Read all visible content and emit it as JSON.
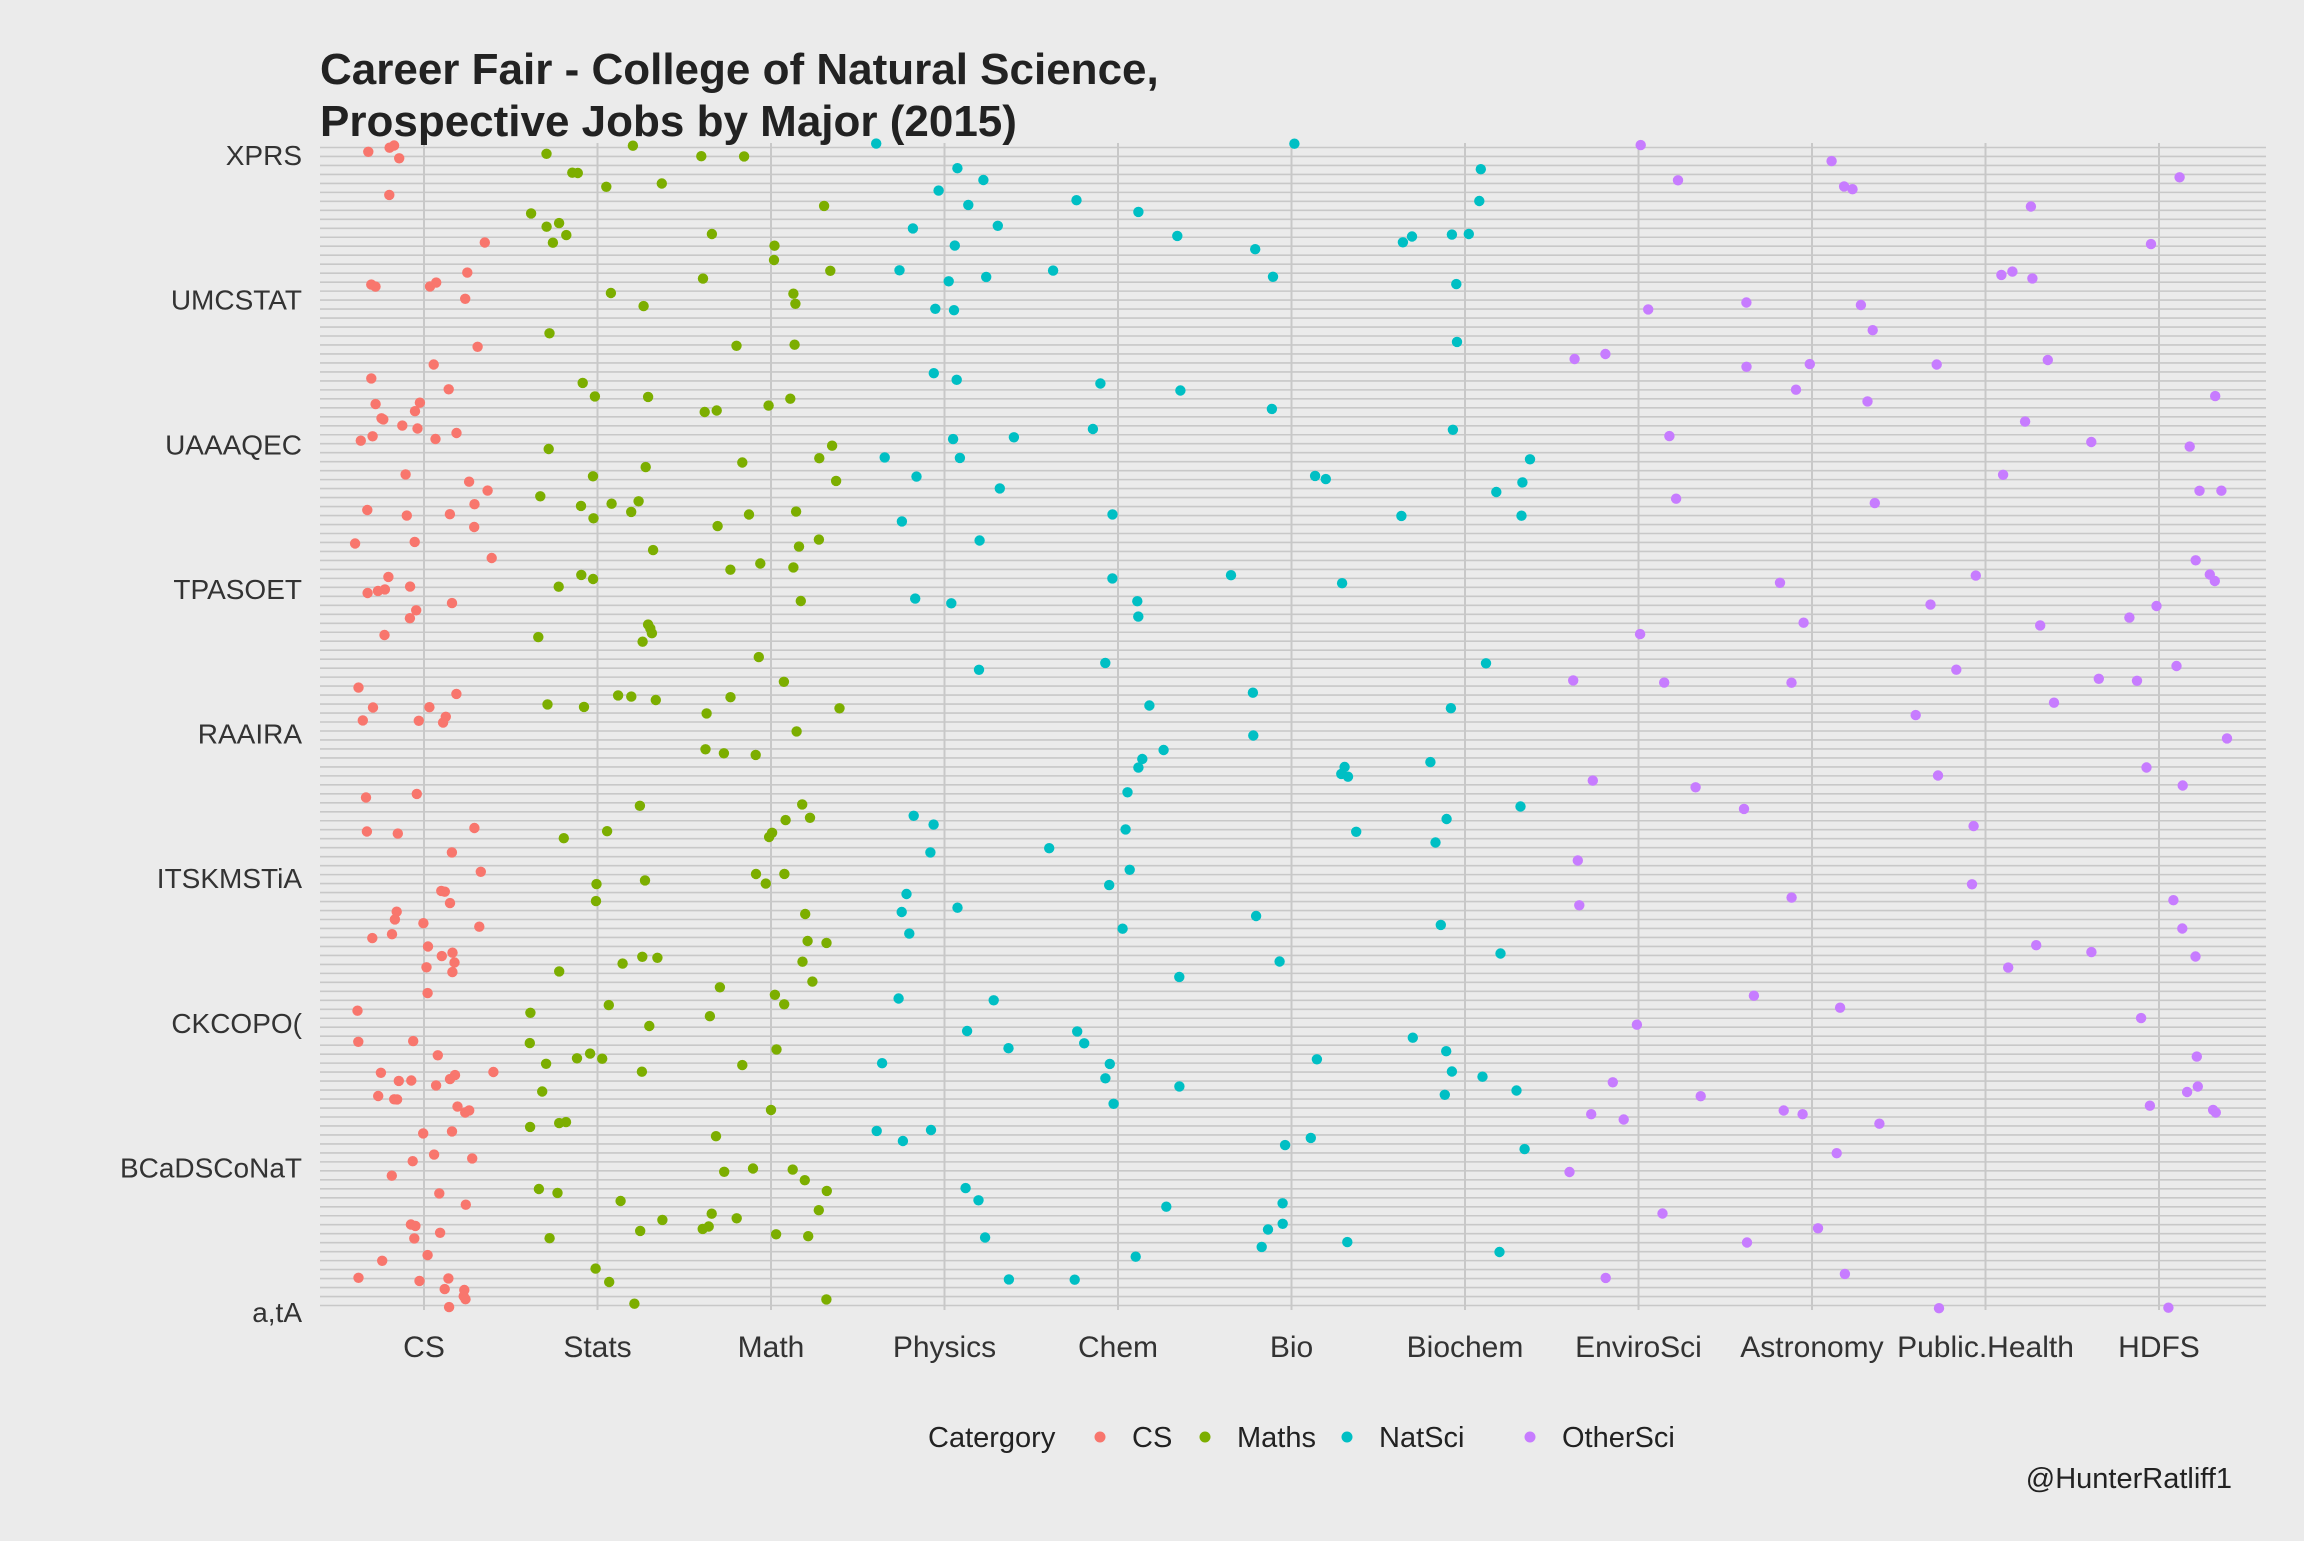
{
  "chart_data": {
    "type": "scatter",
    "title_lines": [
      "Career Fair - College of Natural Science,",
      "Prospective Jobs by Major (2015)"
    ],
    "x_categories": [
      "CS",
      "Stats",
      "Math",
      "Physics",
      "Chem",
      "Bio",
      "Biochem",
      "EnviroSci",
      "Astronomy",
      "Public.Health",
      "HDFS"
    ],
    "y_tick_labels_legible": [
      "XPRS",
      "UMCSTAT",
      "UAAAQEC",
      "TPASOET",
      "RAAIRA",
      "ITSKMSTiA",
      "CKCOPO(",
      "BCaDSCoNaT",
      "a,tA"
    ],
    "y_levels_approx": 130,
    "legend": {
      "title": "Catergory",
      "position": "bottom",
      "entries": [
        {
          "name": "CS",
          "color": "#f8766d"
        },
        {
          "name": "Maths",
          "color": "#7cae00"
        },
        {
          "name": "NatSci",
          "color": "#00bfc4"
        },
        {
          "name": "OtherSci",
          "color": "#c77cff"
        }
      ]
    },
    "category_groups": {
      "CS": "CS",
      "Stats": "Maths",
      "Math": "Maths",
      "Physics": "NatSci",
      "Chem": "NatSci",
      "Bio": "NatSci",
      "Biochem": "NatSci",
      "EnviroSci": "OtherSci",
      "Astronomy": "OtherSci",
      "Public.Health": "OtherSci",
      "HDFS": "OtherSci"
    },
    "points_per_category": [
      117,
      72,
      72,
      45,
      32,
      24,
      30,
      22,
      25,
      20,
      30
    ],
    "jitter": true,
    "grid": true,
    "caption": "@HunterRatliff1"
  },
  "colors": {
    "panel_background": "#ebebeb",
    "grid_line": "#c8c8c8",
    "text": "#222222"
  }
}
